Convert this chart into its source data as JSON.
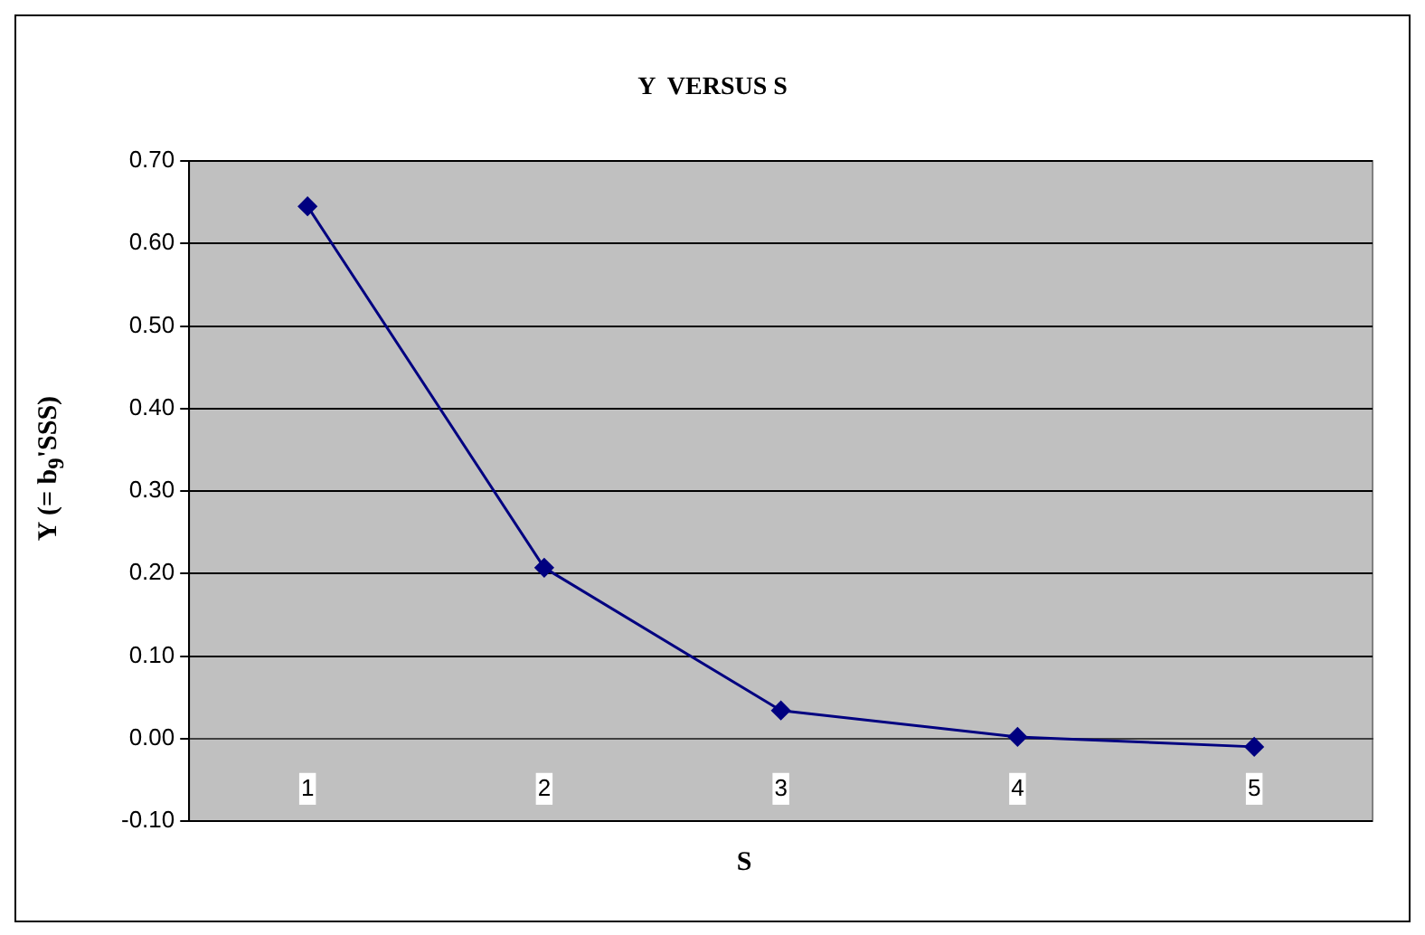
{
  "chart_data": {
    "type": "line",
    "title": "Y  VERSUS S",
    "xlabel": "S",
    "ylabel": "Y (= b$_{9}$'SSS)",
    "categories": [
      "1",
      "2",
      "3",
      "4",
      "5"
    ],
    "series": [
      {
        "color": "#000080",
        "values": [
          0.645,
          0.207,
          0.034,
          0.002,
          -0.01
        ]
      }
    ],
    "ylim": [
      -0.1,
      0.7
    ],
    "yticks": [
      {
        "value": -0.1,
        "label": "-0.10"
      },
      {
        "value": 0,
        "label": "0.00"
      },
      {
        "value": 0.1,
        "label": "0.10"
      },
      {
        "value": 0.2,
        "label": "0.20"
      },
      {
        "value": 0.3,
        "label": "0.30"
      },
      {
        "value": 0.4,
        "label": "0.40"
      },
      {
        "value": 0.5,
        "label": "0.50"
      },
      {
        "value": 0.6,
        "label": "0.60"
      },
      {
        "value": 0.7,
        "label": "0.70"
      }
    ],
    "grid": "y",
    "legend": false,
    "marker": "diamond",
    "line_style": "solid"
  }
}
